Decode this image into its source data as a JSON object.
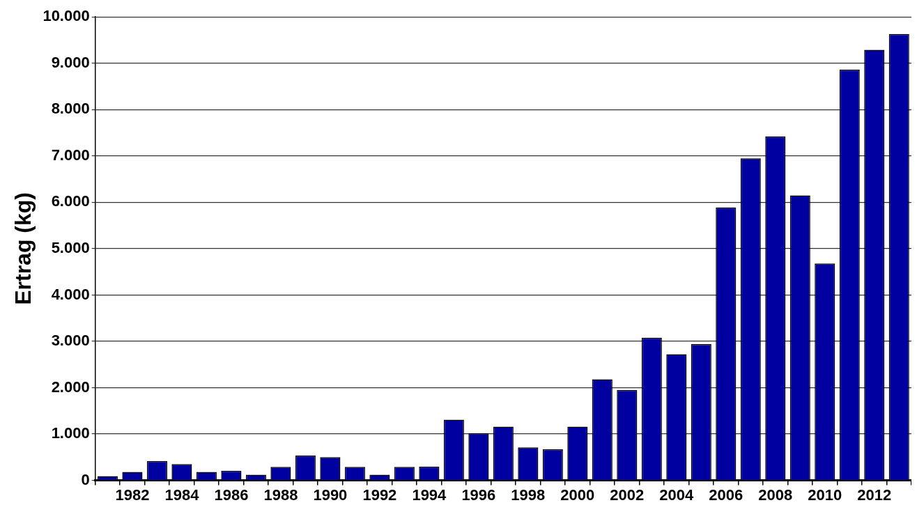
{
  "chart_data": {
    "type": "bar",
    "ylabel": "Ertrag (kg)",
    "categories": [
      null,
      "1982",
      null,
      "1984",
      null,
      "1986",
      null,
      "1988",
      null,
      "1990",
      null,
      "1992",
      null,
      "1994",
      null,
      "1996",
      null,
      "1998",
      null,
      "2000",
      null,
      "2002",
      null,
      "2004",
      null,
      "2006",
      null,
      "2008",
      null,
      "2010",
      null,
      "2012",
      null
    ],
    "values": [
      90,
      180,
      420,
      350,
      180,
      210,
      120,
      290,
      540,
      500,
      290,
      120,
      290,
      300,
      1310,
      1020,
      1160,
      710,
      670,
      1160,
      2180,
      1950,
      3080,
      2720,
      2940,
      5890,
      6950,
      7420,
      6150,
      4680,
      8860,
      9290,
      9630
    ],
    "color": "#0000a0",
    "ylim": [
      0,
      10000
    ],
    "yticks": [
      0,
      {
        "value": 1000,
        "label": "1.000"
      },
      {
        "value": 2000,
        "label": "2.000"
      },
      {
        "value": 3000,
        "label": "3.000"
      },
      {
        "value": 4000,
        "label": "4.000"
      },
      {
        "value": 5000,
        "label": "5.000"
      },
      {
        "value": 6000,
        "label": "6.000"
      },
      {
        "value": 7000,
        "label": "7.000"
      },
      {
        "value": 8000,
        "label": "8.000"
      },
      {
        "value": 9000,
        "label": "9.000"
      },
      {
        "value": 10000,
        "label": "10.000"
      }
    ],
    "grid": "y",
    "legend": false
  }
}
